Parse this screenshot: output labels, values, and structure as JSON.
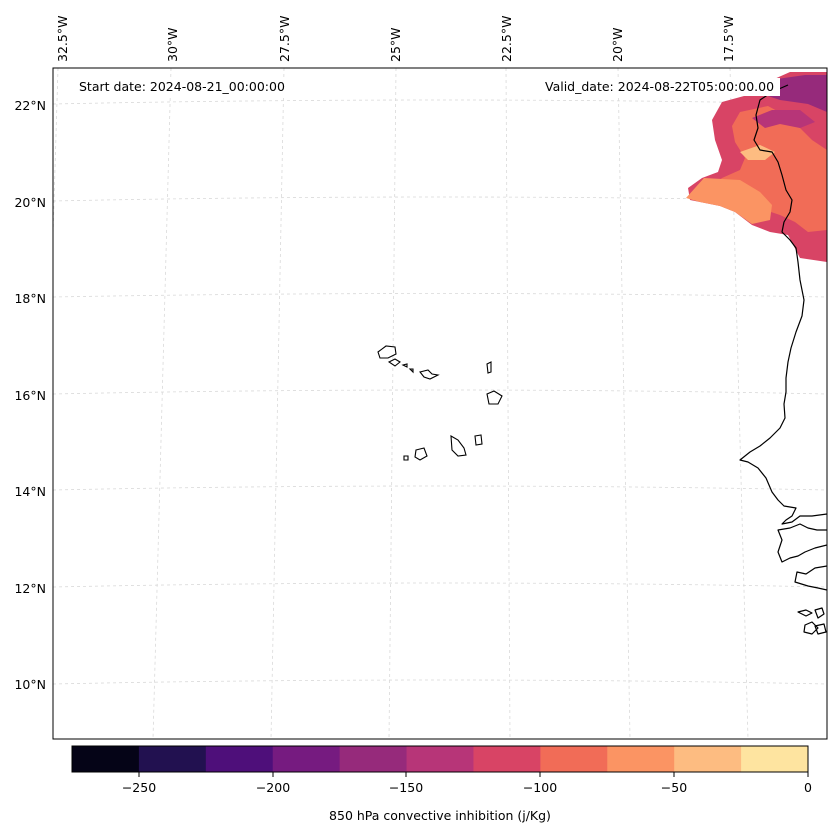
{
  "map": {
    "projection": "lambert-conformal",
    "region": "Cape Verde / West Africa coast",
    "lon_ticks": [
      "32.5°W",
      "30°W",
      "27.5°W",
      "25°W",
      "22.5°W",
      "20°W",
      "17.5°W"
    ],
    "lat_ticks": [
      "22°N",
      "20°N",
      "18°N",
      "16°N",
      "14°N",
      "12°N",
      "10°N"
    ],
    "start_date": "Start date: 2024-08-21_00:00:00",
    "valid_date": "Valid_date: 2024-08-22T05:00:00.00"
  },
  "colorbar": {
    "title": "850 hPa convective inhibition (j/Kg)",
    "ticks": [
      "−250",
      "−200",
      "−150",
      "−100",
      "−50",
      "0"
    ],
    "bounds": [
      -275,
      -250,
      -225,
      -200,
      -175,
      -150,
      -125,
      -100,
      -75,
      -50,
      -25,
      0
    ],
    "colors": [
      "#050417",
      "#221150",
      "#4e0f7a",
      "#761b80",
      "#962a7b",
      "#b73578",
      "#d84465",
      "#f16c57",
      "#fb9463",
      "#fdbc81",
      "#fee4a0"
    ]
  },
  "colors": {
    "grid": "#d0d0d0",
    "coast": "#000000"
  }
}
